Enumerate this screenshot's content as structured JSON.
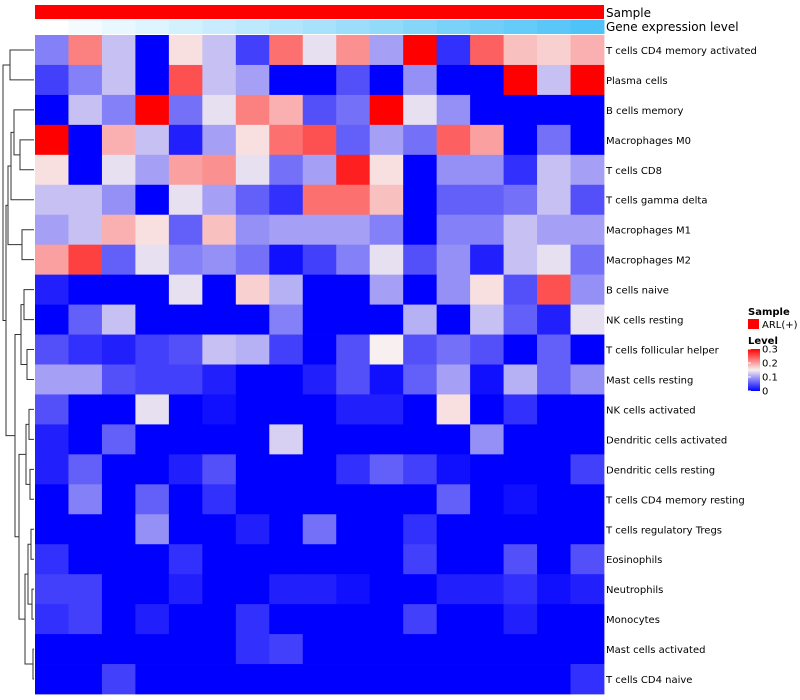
{
  "chart_data": {
    "type": "heatmap",
    "title": "",
    "annotation_tracks": [
      {
        "name": "Sample",
        "label": "Sample",
        "color": "#ff0000"
      },
      {
        "name": "Gene expression level",
        "label": "Gene expression level",
        "gradient": [
          "#ffffff",
          "#4fc3f7"
        ]
      }
    ],
    "rows": [
      "T cells CD4 memory activated",
      "Plasma cells",
      "B cells memory",
      "Macrophages M0",
      "T cells CD8",
      "T cells gamma delta",
      "Macrophages M1",
      "Macrophages M2",
      "B cells naive",
      "NK cells resting",
      "T cells follicular helper",
      "Mast cells resting",
      "NK cells activated",
      "Dendritic cells activated",
      "Dendritic cells resting",
      "T cells CD4 memory resting",
      "T cells regulatory  Tregs",
      "Eosinophils",
      "Neutrophils",
      "Monocytes",
      "Mast cells activated",
      "T cells CD4 naive"
    ],
    "n_columns": 17,
    "values": [
      [
        0.08,
        0.22,
        0.12,
        0.0,
        0.16,
        0.12,
        0.04,
        0.23,
        0.14,
        0.21,
        0.1,
        0.3,
        0.03,
        0.24,
        0.18,
        0.17,
        0.19
      ],
      [
        0.04,
        0.08,
        0.12,
        0.0,
        0.25,
        0.12,
        0.1,
        0.0,
        0.0,
        0.05,
        0.0,
        0.09,
        0.0,
        0.0,
        0.3,
        0.12,
        0.3
      ],
      [
        0.0,
        0.12,
        0.08,
        0.3,
        0.07,
        0.14,
        0.22,
        0.19,
        0.05,
        0.07,
        0.3,
        0.14,
        0.09,
        0.0,
        0.0,
        0.0,
        0.0
      ],
      [
        0.3,
        0.0,
        0.19,
        0.12,
        0.02,
        0.1,
        0.16,
        0.23,
        0.25,
        0.06,
        0.1,
        0.07,
        0.24,
        0.2,
        0.0,
        0.07,
        0.0
      ],
      [
        0.16,
        0.0,
        0.14,
        0.1,
        0.2,
        0.21,
        0.14,
        0.07,
        0.1,
        0.28,
        0.16,
        0.0,
        0.09,
        0.09,
        0.03,
        0.12,
        0.1
      ],
      [
        0.12,
        0.12,
        0.09,
        0.0,
        0.14,
        0.1,
        0.06,
        0.03,
        0.23,
        0.23,
        0.18,
        0.0,
        0.06,
        0.06,
        0.07,
        0.12,
        0.05
      ],
      [
        0.1,
        0.12,
        0.19,
        0.16,
        0.06,
        0.18,
        0.09,
        0.1,
        0.1,
        0.1,
        0.08,
        0.0,
        0.08,
        0.08,
        0.12,
        0.1,
        0.1
      ],
      [
        0.2,
        0.26,
        0.06,
        0.14,
        0.08,
        0.09,
        0.07,
        0.01,
        0.04,
        0.08,
        0.14,
        0.05,
        0.09,
        0.02,
        0.12,
        0.14,
        0.07
      ],
      [
        0.02,
        0.0,
        0.0,
        0.0,
        0.14,
        0.0,
        0.17,
        0.11,
        0.0,
        0.0,
        0.1,
        0.0,
        0.09,
        0.16,
        0.05,
        0.25,
        0.09
      ],
      [
        0.0,
        0.06,
        0.12,
        0.0,
        0.0,
        0.0,
        0.0,
        0.08,
        0.0,
        0.0,
        0.0,
        0.11,
        0.0,
        0.12,
        0.06,
        0.02,
        0.14
      ],
      [
        0.05,
        0.03,
        0.02,
        0.04,
        0.05,
        0.12,
        0.11,
        0.04,
        0.0,
        0.05,
        0.15,
        0.05,
        0.07,
        0.05,
        0.0,
        0.06,
        0.0
      ],
      [
        0.1,
        0.1,
        0.05,
        0.04,
        0.04,
        0.02,
        0.0,
        0.0,
        0.02,
        0.05,
        0.01,
        0.06,
        0.1,
        0.01,
        0.11,
        0.06,
        0.09
      ],
      [
        0.05,
        0.0,
        0.0,
        0.14,
        0.0,
        0.01,
        0.0,
        0.0,
        0.0,
        0.02,
        0.02,
        0.0,
        0.16,
        0.0,
        0.03,
        0.0,
        0.0
      ],
      [
        0.02,
        0.0,
        0.06,
        0.0,
        0.0,
        0.0,
        0.0,
        0.13,
        0.0,
        0.0,
        0.0,
        0.0,
        0.0,
        0.09,
        0.0,
        0.0,
        0.0
      ],
      [
        0.02,
        0.06,
        0.0,
        0.0,
        0.02,
        0.05,
        0.0,
        0.0,
        0.0,
        0.03,
        0.06,
        0.04,
        0.01,
        0.0,
        0.0,
        0.0,
        0.04
      ],
      [
        0.0,
        0.08,
        0.0,
        0.06,
        0.0,
        0.03,
        0.0,
        0.0,
        0.0,
        0.0,
        0.0,
        0.0,
        0.06,
        0.0,
        0.01,
        0.0,
        0.0
      ],
      [
        0.0,
        0.0,
        0.0,
        0.09,
        0.0,
        0.0,
        0.02,
        0.0,
        0.07,
        0.0,
        0.0,
        0.03,
        0.0,
        0.0,
        0.0,
        0.0,
        0.0
      ],
      [
        0.03,
        0.0,
        0.0,
        0.0,
        0.03,
        0.0,
        0.0,
        0.0,
        0.0,
        0.0,
        0.0,
        0.04,
        0.0,
        0.0,
        0.05,
        0.0,
        0.05
      ],
      [
        0.04,
        0.04,
        0.0,
        0.0,
        0.02,
        0.0,
        0.0,
        0.02,
        0.02,
        0.01,
        0.0,
        0.0,
        0.02,
        0.02,
        0.03,
        0.01,
        0.02
      ],
      [
        0.03,
        0.04,
        0.0,
        0.02,
        0.0,
        0.0,
        0.03,
        0.0,
        0.0,
        0.0,
        0.0,
        0.04,
        0.0,
        0.0,
        0.02,
        0.0,
        0.0
      ],
      [
        0.0,
        0.0,
        0.0,
        0.0,
        0.0,
        0.0,
        0.03,
        0.04,
        0.0,
        0.0,
        0.0,
        0.0,
        0.0,
        0.0,
        0.0,
        0.0,
        0.0
      ],
      [
        0.0,
        0.0,
        0.04,
        0.0,
        0.0,
        0.0,
        0.0,
        0.0,
        0.0,
        0.0,
        0.0,
        0.0,
        0.0,
        0.0,
        0.0,
        0.0,
        0.03
      ]
    ],
    "color_scale": {
      "min": 0,
      "mid": 0.15,
      "max": 0.3,
      "low_color": "#0000ff",
      "mid_color": "#f8f0f0",
      "high_color": "#ff0000"
    },
    "legend": {
      "sample_title": "Sample",
      "sample_entry": "ARL(+)",
      "sample_color": "#ff0000",
      "level_title": "Level",
      "level_ticks": [
        {
          "value": 0.3,
          "label": "0.3"
        },
        {
          "value": 0.2,
          "label": "0.2"
        },
        {
          "value": 0.1,
          "label": "0.1"
        },
        {
          "value": 0,
          "label": "0"
        }
      ]
    },
    "row_dendrogram": true
  }
}
